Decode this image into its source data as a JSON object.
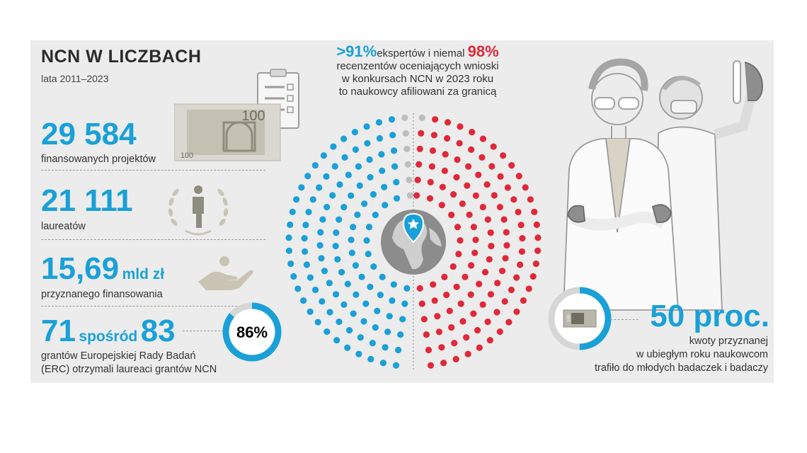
{
  "title": "NCN W LICZBACH",
  "subtitle": "lata 2011–2023",
  "stats": [
    {
      "value": "29 584",
      "unit": "",
      "label": "finansowanych projektów"
    },
    {
      "value": "21 111",
      "unit": "",
      "label": "laureatów"
    },
    {
      "value": "15,69",
      "unit": "mld zł",
      "label": "przyznanego finansowania"
    }
  ],
  "erc": {
    "value_a": "71",
    "connector": "spośród",
    "value_b": "83",
    "label_line1": "grantów Europejskiej Rady Badań",
    "label_line2": "(ERC) otrzymali laureaci grantów NCN",
    "percent_text": "86%",
    "percent_value": 86
  },
  "experts": {
    "pct_experts": ">91%",
    "text1": "ekspertów i niemal",
    "pct_reviewers": "98%",
    "line2": "recenzentów oceniających wnioski",
    "line3": "w konkursach NCN w 2023 roku",
    "line4": "to naukowcy afiliowani za granicą",
    "expert_share": 91,
    "reviewer_share": 98
  },
  "young": {
    "value": "50 proc.",
    "line1": "kwoty przyznanej",
    "line2": "w ubiegłym roku naukowcom",
    "line3": "trafiło do młodych badaczek i badaczy",
    "percent_value": 50
  },
  "banknote_text": "100",
  "colors": {
    "accent_blue": "#1aa0d8",
    "accent_red": "#e0283a",
    "dot_gray": "#bdbdbd",
    "panel_bg": "#ececec"
  },
  "icons": [
    "banknote-icon",
    "clipboard-icon",
    "laurel-person-icon",
    "hand-coin-icon",
    "globe-pin-icon",
    "scientists-illustration"
  ]
}
